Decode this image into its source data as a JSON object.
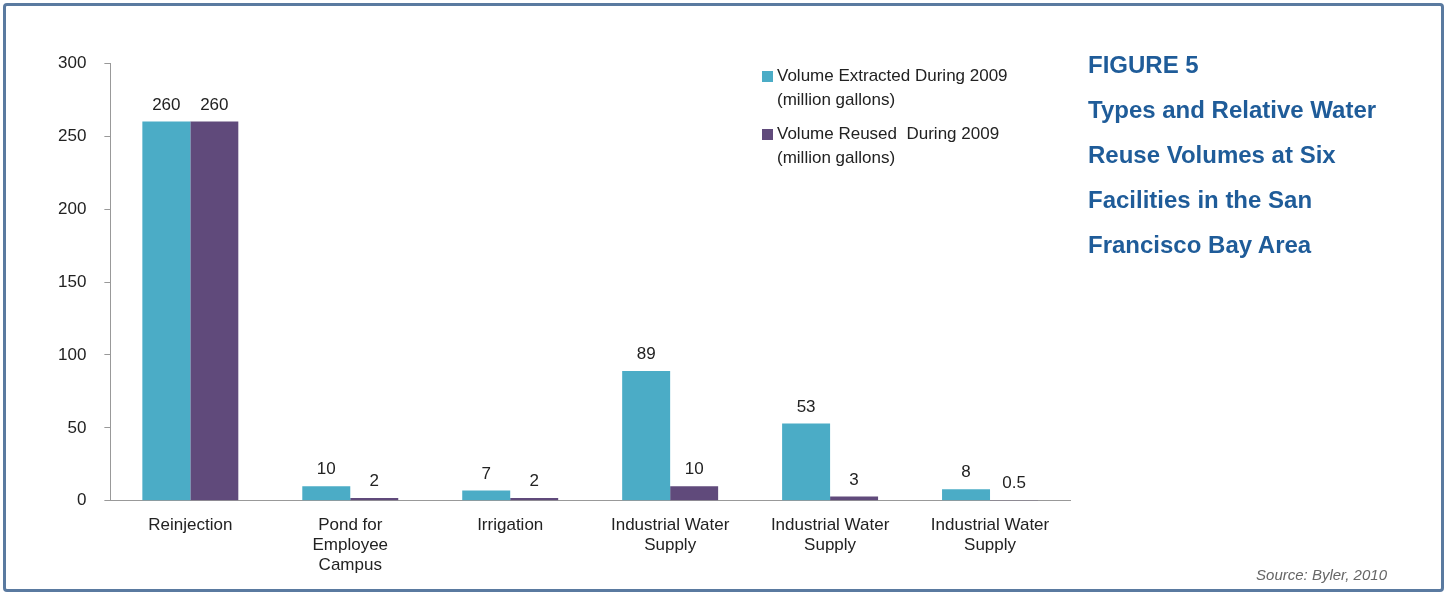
{
  "chart_data": {
    "type": "bar",
    "title": "FIGURE 5",
    "subtitle": "Types and Relative Water Reuse Volumes at Six Facilities in the San Francisco Bay Area",
    "categories": [
      "Reinjection",
      "Pond for\nEmployee\nCampus",
      "Irrigation",
      "Industrial Water\nSupply",
      "Industrial Water\nSupply",
      "Industrial Water\nSupply"
    ],
    "series": [
      {
        "name": "Volume Extracted During 2009 (million gallons)",
        "color": "#4bacc6",
        "values": [
          260,
          10,
          7,
          89,
          53,
          8
        ]
      },
      {
        "name": "Volume Reused  During 2009 (million gallons)",
        "color": "#604a7b",
        "values": [
          260,
          2,
          2,
          10,
          3,
          0.5
        ]
      }
    ],
    "ylim": [
      0,
      300
    ],
    "yticks": [
      0,
      50,
      100,
      150,
      200,
      250,
      300
    ],
    "grid": false,
    "legend": "top right",
    "data_labels": true,
    "annotations": [
      "Source:  Byler, 2010"
    ]
  }
}
